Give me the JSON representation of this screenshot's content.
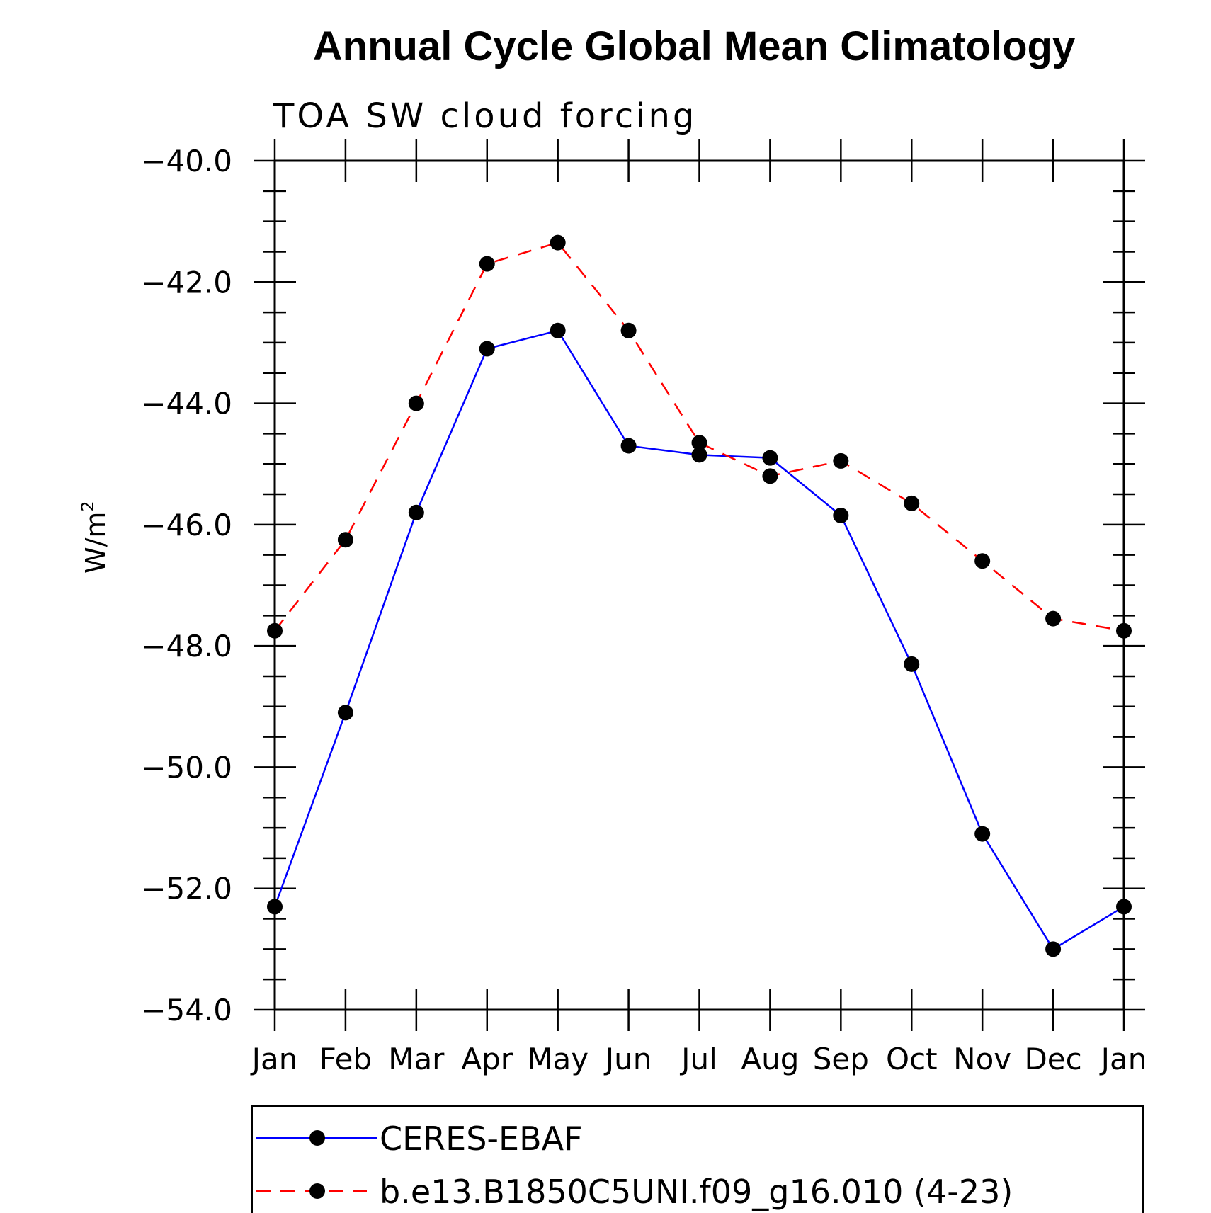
{
  "chart_data": {
    "type": "line",
    "title": "Annual Cycle Global Mean Climatology",
    "subtitle": "TOA SW cloud forcing",
    "ylabel": "W/m",
    "ylabel_sup": "2",
    "xlabel": "",
    "categories": [
      "Jan",
      "Feb",
      "Mar",
      "Apr",
      "May",
      "Jun",
      "Jul",
      "Aug",
      "Sep",
      "Oct",
      "Nov",
      "Dec",
      "Jan"
    ],
    "ylim": [
      -54.0,
      -40.0
    ],
    "yticks": [
      "-40.0",
      "-42.0",
      "-44.0",
      "-46.0",
      "-48.0",
      "-50.0",
      "-52.0",
      "-54.0"
    ],
    "legend_placement": "bottom",
    "series": [
      {
        "name": "CERES-EBAF",
        "color": "#0000ff",
        "style": "solid",
        "marker": "filled-circle",
        "values": [
          -52.3,
          -49.1,
          -45.8,
          -43.1,
          -42.8,
          -44.7,
          -44.85,
          -44.9,
          -45.85,
          -48.3,
          -51.1,
          -53.0,
          -52.3
        ]
      },
      {
        "name": "b.e13.B1850C5UNI.f09_g16.010 (4-23)",
        "color": "#ff0000",
        "style": "dashed",
        "marker": "filled-circle",
        "values": [
          -47.75,
          -46.25,
          -44.0,
          -41.7,
          -41.35,
          -42.8,
          -44.65,
          -45.2,
          -44.95,
          -45.65,
          -46.6,
          -47.55,
          -47.75
        ]
      }
    ]
  }
}
